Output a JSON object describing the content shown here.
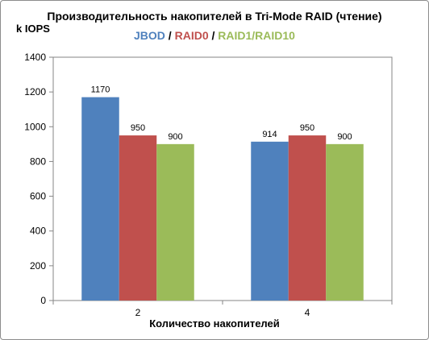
{
  "chart_data": {
    "type": "bar",
    "title": "Производительность накопителей в Tri-Mode RAID (чтение)",
    "subtitle_parts": [
      {
        "text": "JBOD",
        "color": "#4f81bd"
      },
      {
        "text": " / ",
        "color": "#000000"
      },
      {
        "text": "RAID0",
        "color": "#c0504d"
      },
      {
        "text": " / ",
        "color": "#000000"
      },
      {
        "text": "RAID1/RAID10",
        "color": "#9bbb59"
      }
    ],
    "ylabel": "k IOPS",
    "xlabel": "Количество накопителей",
    "categories": [
      "2",
      "4"
    ],
    "ylim": [
      0,
      1400
    ],
    "yticks": [
      0,
      200,
      400,
      600,
      800,
      1000,
      1200,
      1400
    ],
    "grid": false,
    "series": [
      {
        "name": "JBOD",
        "color": "#4f81bd",
        "values": [
          1170,
          914
        ]
      },
      {
        "name": "RAID0",
        "color": "#c0504d",
        "values": [
          950,
          950
        ]
      },
      {
        "name": "RAID1/RAID10",
        "color": "#9bbb59",
        "values": [
          900,
          900
        ]
      }
    ]
  }
}
